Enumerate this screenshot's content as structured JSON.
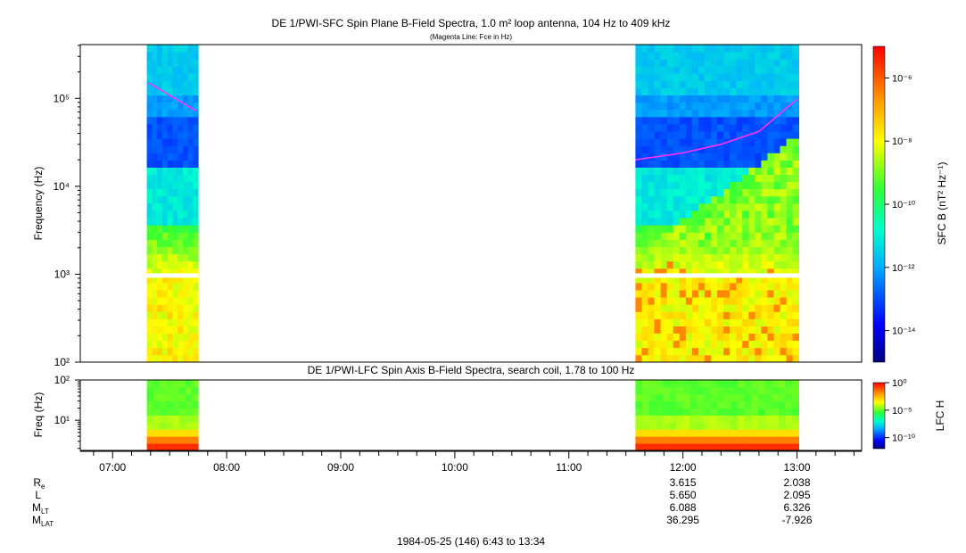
{
  "chart_data": [
    {
      "type": "heatmap",
      "title": "DE 1/PWI-SFC  Spin Plane B-Field Spectra, 1.0 m² loop antenna, 104 Hz to 409 kHz",
      "subtitle": "(Magenta Line: Fce in Hz)",
      "ylabel": "Frequency (Hz)",
      "yscale": "log",
      "ylim": [
        100,
        409000
      ],
      "yticks": [
        "10²",
        "10³",
        "10⁴",
        "10⁵"
      ],
      "colorbar_label": "SFC B (nT² Hz⁻¹)",
      "colorbar_ticks": [
        "10⁻⁶",
        "10⁻⁸",
        "10⁻¹⁰",
        "10⁻¹²",
        "10⁻¹⁴"
      ],
      "colorbar_range_log10": [
        -15,
        -5
      ],
      "data_intervals": [
        {
          "start": "07:18",
          "end": "07:45"
        },
        {
          "start": "11:35",
          "end": "13:01"
        }
      ],
      "series": [
        {
          "name": "Fce",
          "color": "#ff33ff",
          "segments": [
            {
              "x": [
                "07:19",
                "07:44"
              ],
              "y": [
                150000,
                72000
              ]
            },
            {
              "x": [
                "11:35",
                "12:00",
                "12:20",
                "12:40",
                "13:00"
              ],
              "y": [
                20000,
                24000,
                30000,
                42000,
                98000
              ]
            }
          ]
        }
      ]
    },
    {
      "type": "heatmap",
      "title": "DE 1/PWI-LFC  Spin Axis B-Field Spectra, search coil, 1.78 to 100 Hz",
      "ylabel": "Freq (Hz)",
      "yscale": "log",
      "ylim": [
        1.78,
        100
      ],
      "yticks": [
        "10¹",
        "10²"
      ],
      "colorbar_label": "LFC H",
      "colorbar_ticks": [
        "10⁰",
        "10⁻⁵",
        "10⁻¹⁰"
      ],
      "colorbar_range_log10": [
        -12,
        0
      ],
      "data_intervals": [
        {
          "start": "07:18",
          "end": "07:45"
        },
        {
          "start": "11:35",
          "end": "13:01"
        }
      ]
    }
  ],
  "time_axis": {
    "ticks": [
      "07:00",
      "08:00",
      "09:00",
      "10:00",
      "11:00",
      "12:00",
      "13:00"
    ],
    "range": [
      "06:43",
      "13:34"
    ]
  },
  "ephemeris": {
    "rows": [
      {
        "label": "R",
        "sub": "e",
        "values": [
          "3.615",
          "2.038"
        ]
      },
      {
        "label": "L",
        "sub": "",
        "values": [
          "5.650",
          "2.095"
        ]
      },
      {
        "label": "M",
        "sub": "LT",
        "values": [
          "6.088",
          "6.326"
        ]
      },
      {
        "label": "M",
        "sub": "LAT",
        "values": [
          "36.295",
          "-7.926"
        ]
      }
    ],
    "times": [
      "12:00",
      "13:00"
    ]
  },
  "footer": "1984-05-25 (146) 6:43 to 13:34"
}
